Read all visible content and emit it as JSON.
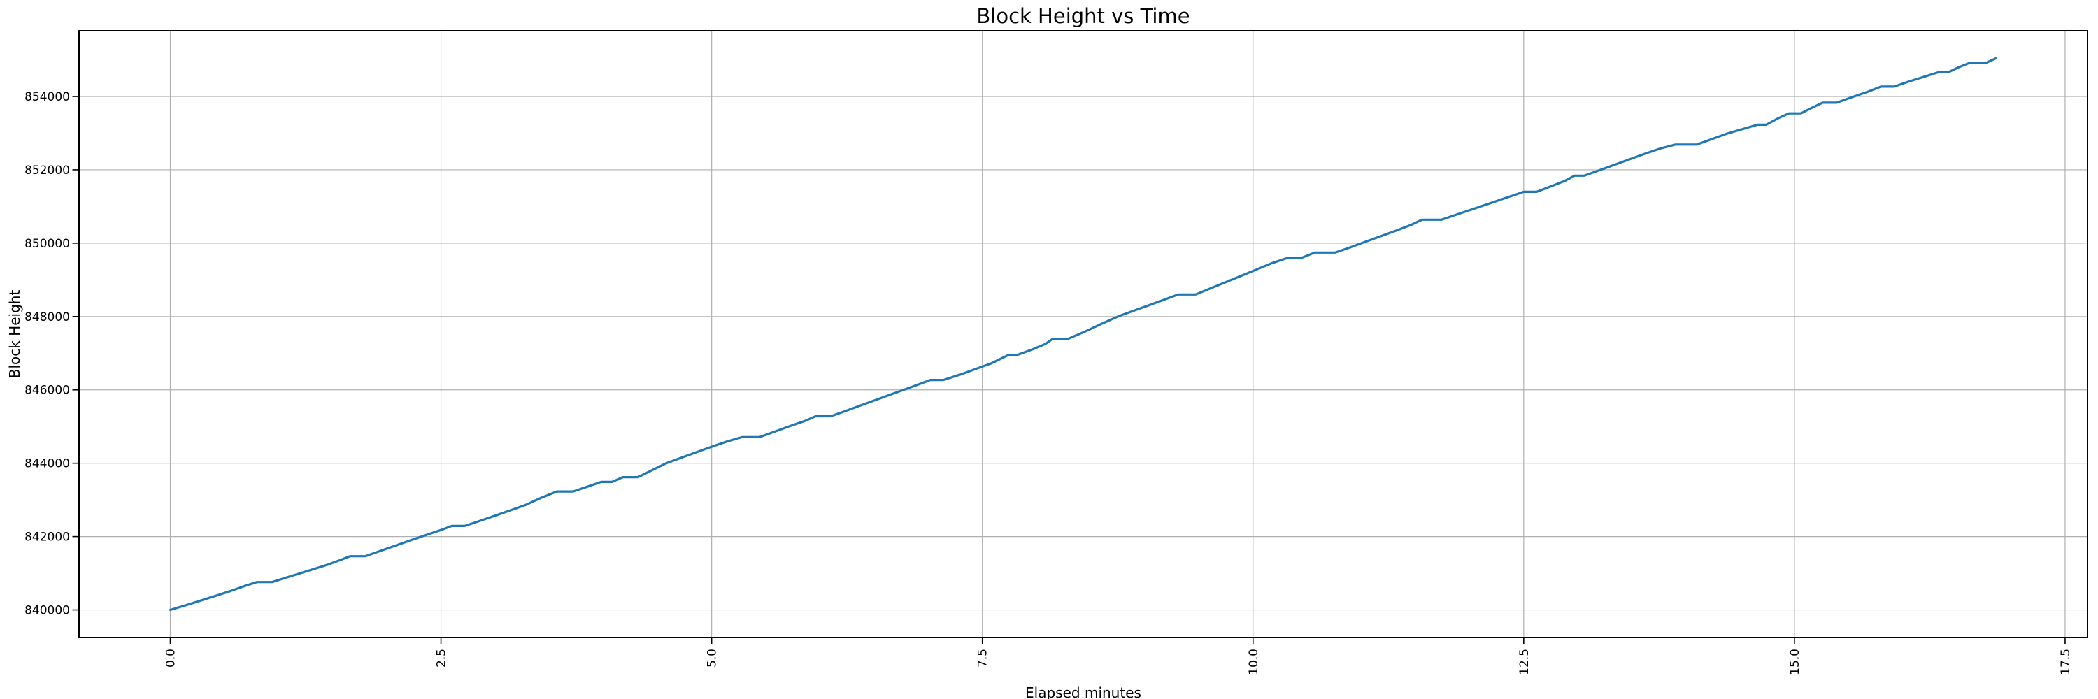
{
  "figure": {
    "background": "#ffffff"
  },
  "chart_data": {
    "type": "line",
    "title": "Block Height vs Time",
    "xlabel": "Elapsed minutes",
    "ylabel": "Block Height",
    "grid": true,
    "legend": null,
    "grid_color": "#b0b0b0",
    "axis_color": "#000000",
    "text_color": "#000000",
    "xlim": [
      -0.843,
      17.707
    ],
    "ylim": [
      839248,
      855792
    ],
    "x_ticks": [
      0.0,
      2.5,
      5.0,
      7.5,
      10.0,
      12.5,
      15.0,
      17.5
    ],
    "x_tick_labels": [
      "0.0",
      "2.5",
      "5.0",
      "7.5",
      "10.0",
      "12.5",
      "15.0",
      "17.5"
    ],
    "y_ticks": [
      840000,
      842000,
      844000,
      846000,
      848000,
      850000,
      852000,
      854000
    ],
    "y_tick_labels": [
      "840000",
      "842000",
      "844000",
      "846000",
      "848000",
      "850000",
      "852000",
      "854000"
    ],
    "series": [
      {
        "name": "block-height",
        "color": "#1f77b4",
        "points": [
          [
            0.0,
            840000
          ],
          [
            0.14,
            840125
          ],
          [
            0.28,
            840255
          ],
          [
            0.42,
            840385
          ],
          [
            0.56,
            840520
          ],
          [
            0.68,
            840645
          ],
          [
            0.8,
            840760
          ],
          [
            0.94,
            840760
          ],
          [
            1.08,
            840890
          ],
          [
            1.2,
            841000
          ],
          [
            1.32,
            841110
          ],
          [
            1.45,
            841230
          ],
          [
            1.56,
            841350
          ],
          [
            1.66,
            841465
          ],
          [
            1.8,
            841465
          ],
          [
            1.94,
            841610
          ],
          [
            2.08,
            841755
          ],
          [
            2.22,
            841900
          ],
          [
            2.36,
            842040
          ],
          [
            2.5,
            842180
          ],
          [
            2.6,
            842290
          ],
          [
            2.72,
            842290
          ],
          [
            2.86,
            842430
          ],
          [
            3.0,
            842570
          ],
          [
            3.14,
            842715
          ],
          [
            3.28,
            842860
          ],
          [
            3.42,
            843050
          ],
          [
            3.57,
            843230
          ],
          [
            3.72,
            843230
          ],
          [
            3.85,
            843360
          ],
          [
            3.98,
            843490
          ],
          [
            4.08,
            843490
          ],
          [
            4.18,
            843620
          ],
          [
            4.32,
            843620
          ],
          [
            4.45,
            843810
          ],
          [
            4.58,
            844000
          ],
          [
            4.72,
            844150
          ],
          [
            4.86,
            844300
          ],
          [
            5.0,
            844450
          ],
          [
            5.14,
            844590
          ],
          [
            5.28,
            844710
          ],
          [
            5.44,
            844710
          ],
          [
            5.58,
            844860
          ],
          [
            5.72,
            845010
          ],
          [
            5.86,
            845150
          ],
          [
            5.96,
            845280
          ],
          [
            6.1,
            845280
          ],
          [
            6.24,
            845430
          ],
          [
            6.38,
            845580
          ],
          [
            6.52,
            845730
          ],
          [
            6.66,
            845880
          ],
          [
            6.8,
            846030
          ],
          [
            6.94,
            846180
          ],
          [
            7.02,
            846270
          ],
          [
            7.14,
            846270
          ],
          [
            7.3,
            846420
          ],
          [
            7.44,
            846570
          ],
          [
            7.58,
            846720
          ],
          [
            7.74,
            846950
          ],
          [
            7.82,
            846950
          ],
          [
            7.96,
            847100
          ],
          [
            8.08,
            847250
          ],
          [
            8.15,
            847390
          ],
          [
            8.29,
            847390
          ],
          [
            8.44,
            847580
          ],
          [
            8.6,
            847800
          ],
          [
            8.76,
            848010
          ],
          [
            8.9,
            848160
          ],
          [
            9.04,
            848310
          ],
          [
            9.18,
            848460
          ],
          [
            9.31,
            848600
          ],
          [
            9.47,
            848600
          ],
          [
            9.61,
            848770
          ],
          [
            9.75,
            848940
          ],
          [
            9.89,
            849110
          ],
          [
            10.03,
            849280
          ],
          [
            10.17,
            849450
          ],
          [
            10.31,
            849590
          ],
          [
            10.44,
            849590
          ],
          [
            10.57,
            849745
          ],
          [
            10.76,
            849745
          ],
          [
            10.9,
            849890
          ],
          [
            11.04,
            850040
          ],
          [
            11.18,
            850190
          ],
          [
            11.32,
            850340
          ],
          [
            11.46,
            850500
          ],
          [
            11.56,
            850640
          ],
          [
            11.74,
            850640
          ],
          [
            11.88,
            850780
          ],
          [
            12.02,
            850920
          ],
          [
            12.16,
            851060
          ],
          [
            12.3,
            851200
          ],
          [
            12.44,
            851340
          ],
          [
            12.5,
            851400
          ],
          [
            12.62,
            851400
          ],
          [
            12.76,
            851560
          ],
          [
            12.88,
            851700
          ],
          [
            12.97,
            851840
          ],
          [
            13.06,
            851840
          ],
          [
            13.2,
            851990
          ],
          [
            13.34,
            852140
          ],
          [
            13.48,
            852290
          ],
          [
            13.62,
            852440
          ],
          [
            13.76,
            852580
          ],
          [
            13.9,
            852690
          ],
          [
            14.1,
            852690
          ],
          [
            14.24,
            852840
          ],
          [
            14.38,
            852990
          ],
          [
            14.52,
            853110
          ],
          [
            14.66,
            853230
          ],
          [
            14.74,
            853230
          ],
          [
            14.86,
            853420
          ],
          [
            14.95,
            853540
          ],
          [
            15.06,
            853540
          ],
          [
            15.16,
            853690
          ],
          [
            15.26,
            853830
          ],
          [
            15.39,
            853830
          ],
          [
            15.53,
            853980
          ],
          [
            15.67,
            854120
          ],
          [
            15.8,
            854270
          ],
          [
            15.92,
            854270
          ],
          [
            16.06,
            854410
          ],
          [
            16.2,
            854540
          ],
          [
            16.33,
            854660
          ],
          [
            16.42,
            854660
          ],
          [
            16.52,
            854800
          ],
          [
            16.62,
            854920
          ],
          [
            16.77,
            854920
          ],
          [
            16.86,
            855040
          ]
        ]
      }
    ]
  }
}
